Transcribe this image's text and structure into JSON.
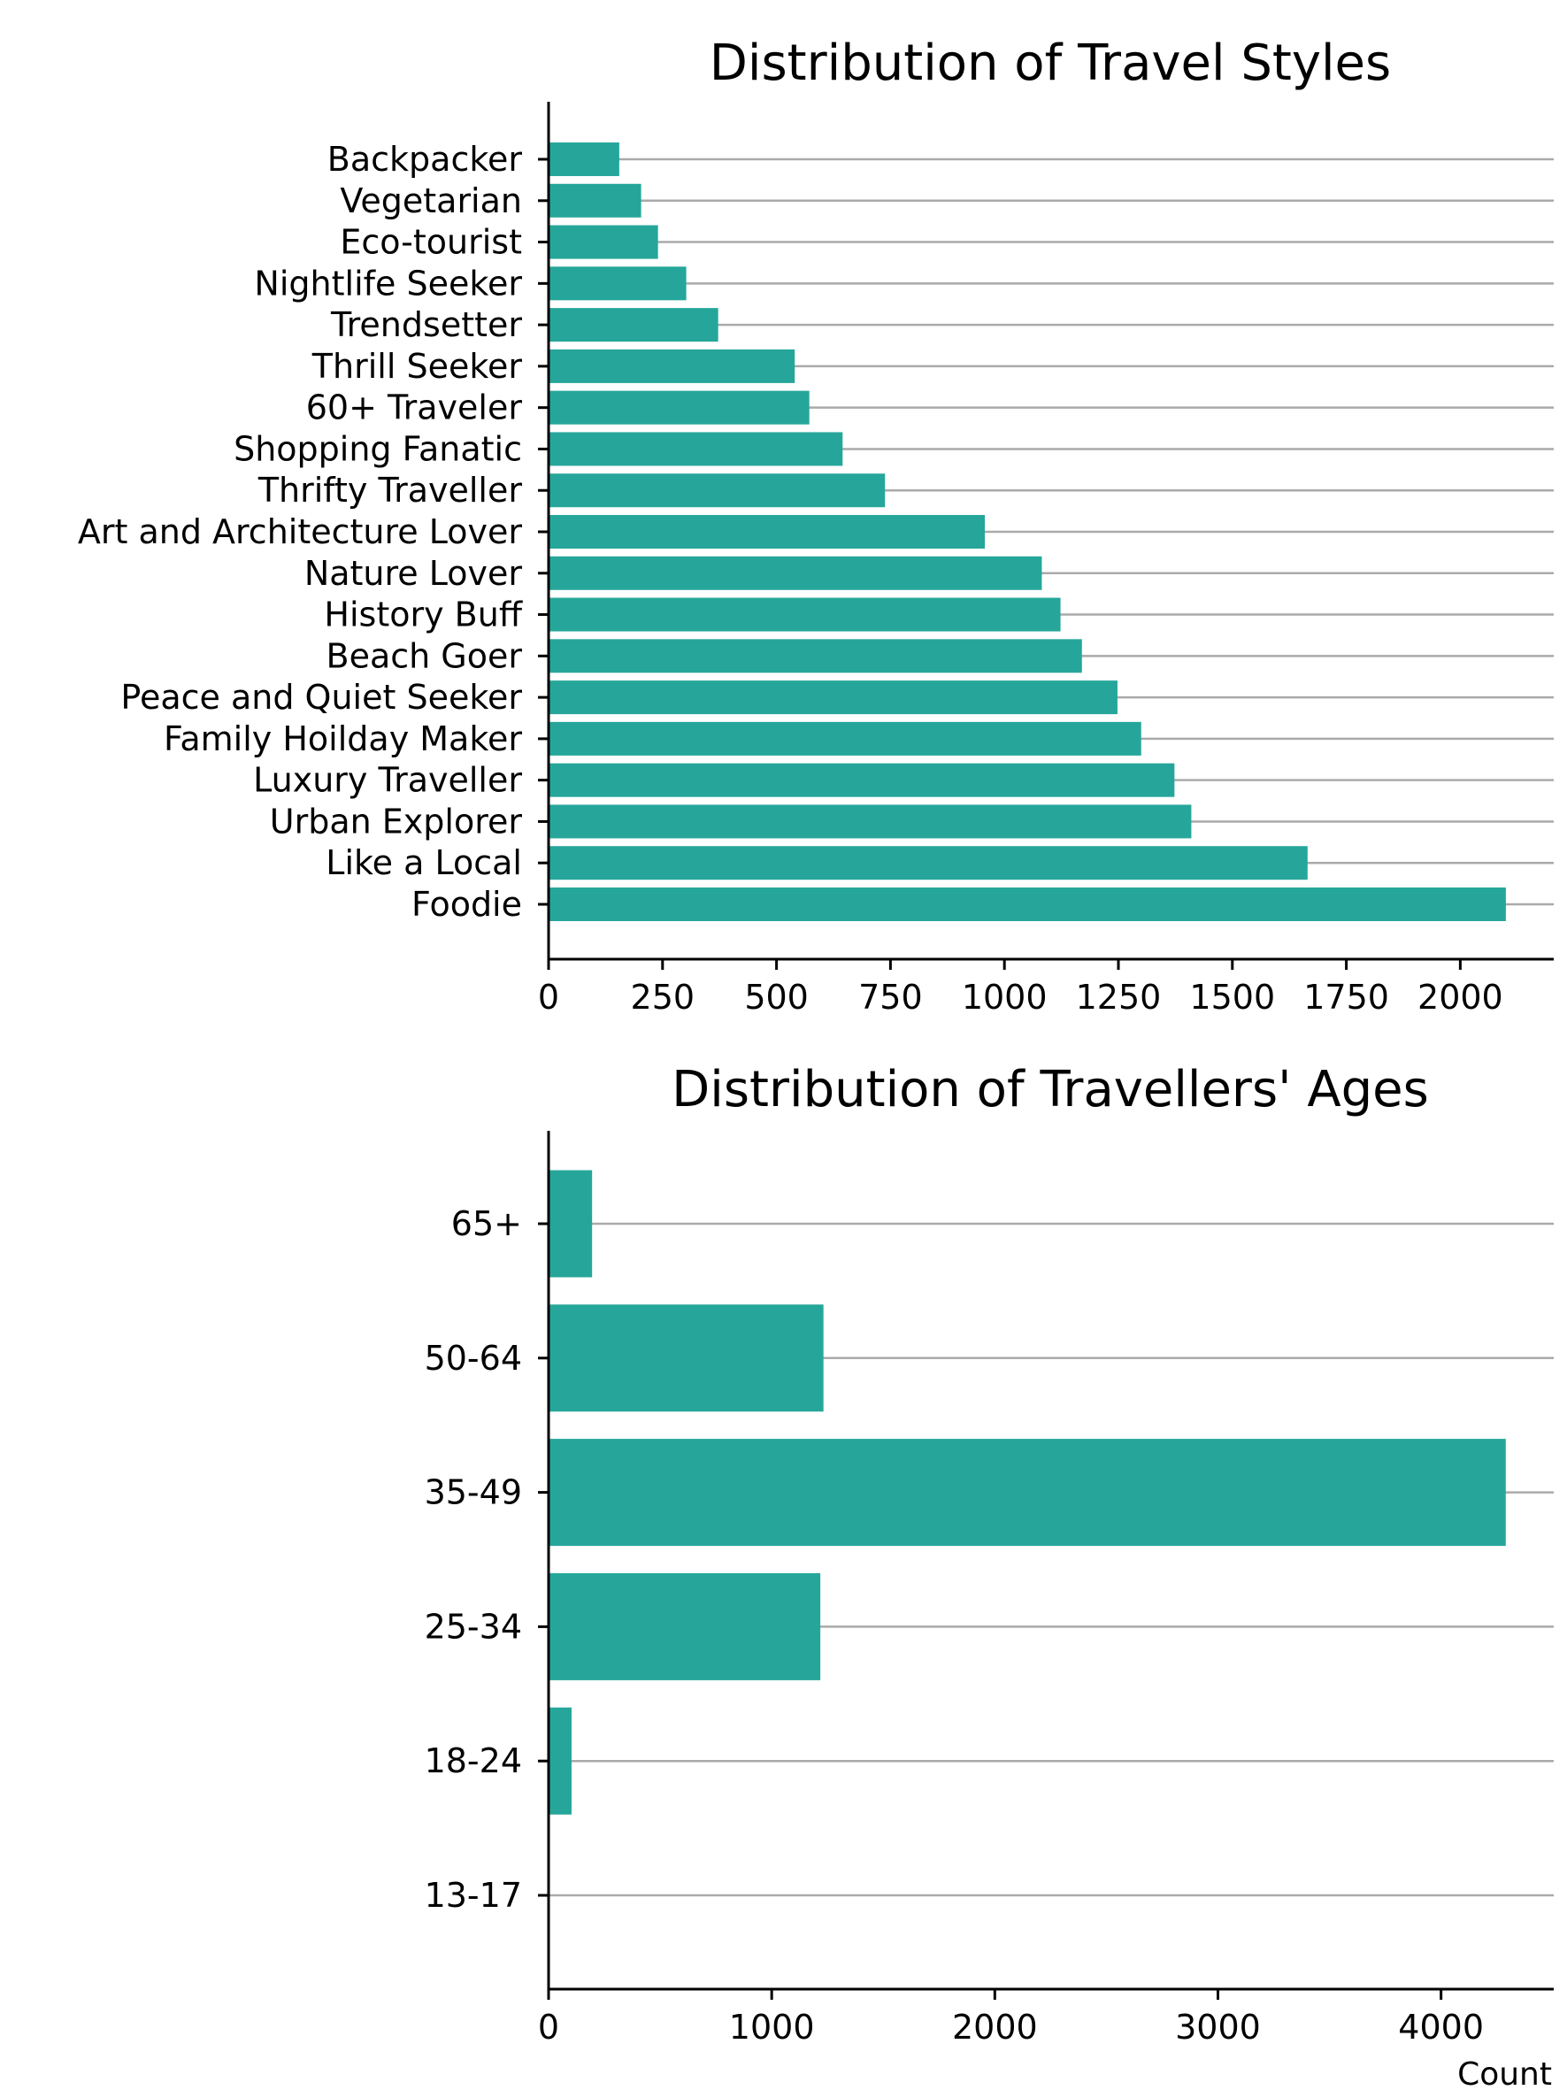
{
  "colors": {
    "bar": "#26a69a",
    "grid": "#aaaaaa",
    "axis": "#000000"
  },
  "chart_data": [
    {
      "type": "bar",
      "orientation": "horizontal",
      "title": "Distribution of Travel Styles",
      "xlabel": "",
      "ylabel": "",
      "categories": [
        "Backpacker",
        "Vegetarian",
        "Eco-tourist",
        "Nightlife Seeker",
        "Trendsetter",
        "Thrill Seeker",
        "60+ Traveler",
        "Shopping Fanatic",
        "Thrifty Traveller",
        "Art and Architecture Lover",
        "Nature Lover",
        "History Buff",
        "Beach Goer",
        "Peace and Quiet Seeker",
        "Family Hoilday Maker",
        "Luxury Traveller",
        "Urban Explorer",
        "Like a Local",
        "Foodie"
      ],
      "values": [
        155,
        203,
        240,
        302,
        372,
        540,
        572,
        645,
        738,
        957,
        1082,
        1123,
        1170,
        1248,
        1300,
        1373,
        1410,
        1665,
        2100
      ],
      "xlim": [
        0,
        2205
      ],
      "xticks": [
        0,
        250,
        500,
        750,
        1000,
        1250,
        1500,
        1750,
        2000
      ],
      "grid": "horizontal gridlines at each category"
    },
    {
      "type": "bar",
      "orientation": "horizontal",
      "title": "Distribution of Travellers' Ages",
      "xlabel": "Count",
      "ylabel": "",
      "categories": [
        "65+",
        "50-64",
        "35-49",
        "25-34",
        "18-24",
        "13-17"
      ],
      "values": [
        195,
        1232,
        4290,
        1218,
        103,
        0
      ],
      "xlim": [
        0,
        4505
      ],
      "xticks": [
        0,
        1000,
        2000,
        3000,
        4000
      ],
      "grid": "horizontal gridlines at each category"
    }
  ]
}
